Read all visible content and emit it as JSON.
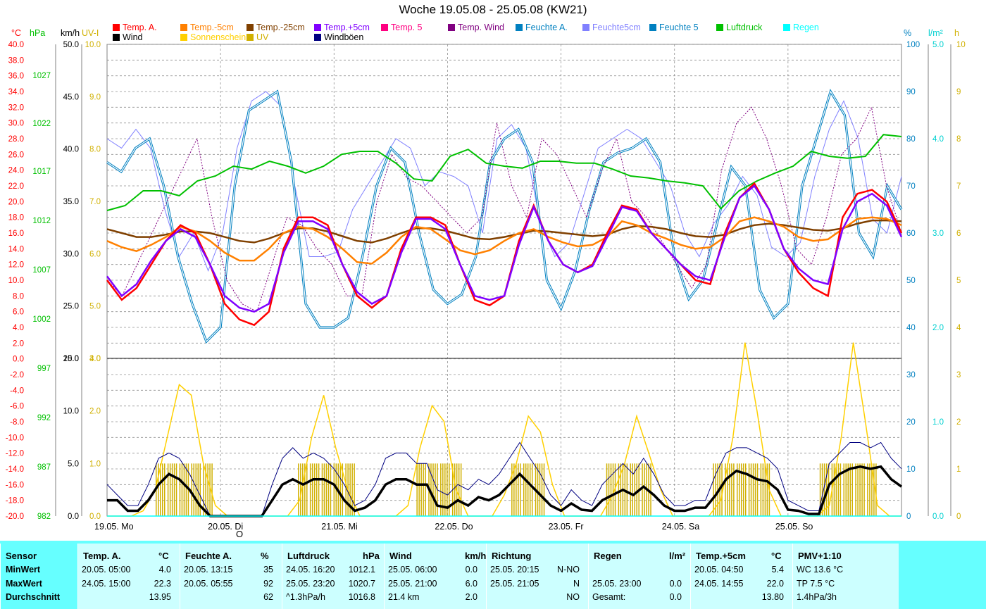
{
  "title": "Woche 19.05.08 - 25.05.08 (KW21)",
  "legend": {
    "row1": [
      {
        "label": "Temp. A.",
        "color": "#ff0000"
      },
      {
        "label": "Temp.-5cm",
        "color": "#ff8000"
      },
      {
        "label": "Temp.-25cm",
        "color": "#804000"
      },
      {
        "label": "Temp.+5cm",
        "color": "#8000ff"
      },
      {
        "label": "Temp. 5",
        "color": "#ff0080"
      },
      {
        "label": "Temp. Wind",
        "color": "#800080"
      },
      {
        "label": "Feuchte A.",
        "color": "#0080c0"
      },
      {
        "label": "Feuchte5cm",
        "color": "#8080ff"
      },
      {
        "label": "Feuchte 5",
        "color": "#0080c0"
      },
      {
        "label": "Luftdruck",
        "color": "#00c000"
      },
      {
        "label": "Regen",
        "color": "#00ffff"
      }
    ],
    "row2": [
      {
        "label": "Wind",
        "color": "#000000"
      },
      {
        "label": "Sonnenschein",
        "color": "#ffd000"
      },
      {
        "label": "UV",
        "color": "#d0b000"
      },
      {
        "label": "Windböen",
        "color": "#000080"
      }
    ]
  },
  "units": {
    "celsius": "°C",
    "hpa": "hPa",
    "kmh": "km/h",
    "uvi": "UV-I",
    "percent": "%",
    "lm2": "l/m²",
    "h": "h"
  },
  "axis_colors": {
    "celsius": "#ff0000",
    "hpa": "#00c000",
    "kmh": "#000000",
    "uvi": "#d0b000",
    "percent": "#0080c0",
    "lm2": "#00d0d0",
    "h": "#d0b000"
  },
  "marker": "O",
  "chart_data": {
    "type": "line",
    "x_labels": [
      "19.05. Mo",
      "20.05. Di",
      "21.05. Mi",
      "22.05. Do",
      "23.05. Fr",
      "24.05. Sa",
      "25.05. So"
    ],
    "axes": {
      "temp_c": {
        "range": [
          -20,
          40
        ],
        "ticks": [
          "40.0",
          "38.0",
          "36.0",
          "34.0",
          "32.0",
          "30.0",
          "28.0",
          "26.0",
          "24.0",
          "22.0",
          "20.0",
          "18.0",
          "16.0",
          "14.0",
          "12.0",
          "10.0",
          "8.0",
          "6.0",
          "4.0",
          "2.0",
          "0.0",
          "-2.0",
          "-4.0",
          "-6.0",
          "-8.0",
          "-10.0",
          "-12.0",
          "-14.0",
          "-16.0",
          "-18.0",
          "-20.0"
        ]
      },
      "pressure_hpa": {
        "ticks": [
          "1027",
          "1022",
          "1017",
          "1012",
          "1007",
          "1002",
          "997",
          "992",
          "987",
          "982"
        ]
      },
      "wind_upper_kmh": {
        "range": [
          20,
          50
        ],
        "ticks": [
          "50.0",
          "45.0",
          "40.0",
          "35.0",
          "30.0",
          "25.0",
          "20.0"
        ]
      },
      "wind_lower_kmh": {
        "range": [
          0,
          15
        ],
        "ticks": [
          "15.0",
          "10.0",
          "5.0",
          "0.0"
        ]
      },
      "uv_upper": {
        "range": [
          4,
          10
        ],
        "ticks": [
          "10.0",
          "9.0",
          "8.0",
          "7.0",
          "6.0",
          "5.0",
          "4.0"
        ]
      },
      "uv_lower": {
        "range": [
          0,
          3
        ],
        "ticks": [
          "3.0",
          "2.0",
          "1.0",
          "0.0"
        ]
      },
      "humidity_pct": {
        "range": [
          0,
          100
        ],
        "ticks": [
          "100",
          "90",
          "80",
          "70",
          "60",
          "50",
          "40",
          "30",
          "20",
          "10",
          "0"
        ]
      },
      "rain_lm2": {
        "range": [
          0,
          5
        ],
        "ticks": [
          "5.0",
          "4.0",
          "3.0",
          "2.0",
          "1.0",
          "0.0"
        ]
      },
      "sun_h": {
        "range": [
          0,
          10
        ],
        "ticks": [
          "10",
          "9",
          "8",
          "7",
          "6",
          "5",
          "4",
          "3",
          "2",
          "1",
          "0"
        ]
      }
    },
    "grid": true,
    "series": [
      {
        "name": "Temp. A.",
        "axis": "temp_c",
        "color": "#ff0000",
        "width": 2.5,
        "values": [
          10,
          7.5,
          9,
          12,
          15,
          17,
          16,
          12,
          7,
          5,
          4.3,
          6,
          14,
          18,
          18,
          17,
          12,
          8,
          6.5,
          8,
          14,
          18,
          18,
          17,
          12,
          7.5,
          6.8,
          8,
          15,
          19.5,
          15,
          12,
          11,
          12,
          16,
          19.5,
          19,
          16,
          14,
          12,
          10,
          9.5,
          16,
          20.5,
          22.3,
          19,
          14,
          11,
          9,
          8,
          18,
          21,
          21.5,
          20,
          16
        ]
      },
      {
        "name": "Temp.+5cm",
        "axis": "temp_c",
        "color": "#8000ff",
        "width": 2.5,
        "values": [
          10.5,
          8,
          9.5,
          12.5,
          15,
          16.5,
          15.5,
          12,
          8,
          6.5,
          6,
          7,
          13.5,
          17.5,
          17.5,
          16.5,
          12,
          8.5,
          7,
          8,
          13.5,
          17.8,
          17.8,
          16.5,
          12,
          8,
          7.5,
          8,
          14.5,
          19.3,
          15,
          12,
          11,
          11.8,
          15.5,
          19.3,
          18.8,
          16,
          14,
          12,
          10.5,
          10,
          15.5,
          20.5,
          22,
          19,
          14,
          11.5,
          10,
          9.5,
          16.5,
          20,
          21,
          19.5,
          15.5
        ]
      },
      {
        "name": "Temp.-5cm",
        "axis": "temp_c",
        "color": "#ff8000",
        "width": 2.5,
        "values": [
          15,
          14.2,
          13.7,
          14.5,
          15.5,
          16.8,
          16.2,
          15,
          13.5,
          12.5,
          12.5,
          14,
          16,
          16.8,
          16.5,
          15.5,
          14,
          12.3,
          12.1,
          13.5,
          15.5,
          16.8,
          16.5,
          15.2,
          13.8,
          13.3,
          13.8,
          15,
          16,
          16.5,
          15.5,
          14.8,
          14.3,
          14.5,
          15.5,
          17.5,
          17,
          16,
          15.3,
          14.5,
          14,
          14.2,
          15.5,
          17.5,
          18,
          17.5,
          16.8,
          15.5,
          15,
          15.2,
          16.5,
          17.8,
          18,
          17.8,
          17
        ]
      },
      {
        "name": "Temp.-25cm",
        "axis": "temp_c",
        "color": "#804000",
        "width": 2.5,
        "values": [
          16.5,
          16,
          15.5,
          15.5,
          15.8,
          16.2,
          16.2,
          16,
          15.5,
          15,
          14.8,
          15.3,
          16,
          16.6,
          16.6,
          16.2,
          15.6,
          15,
          14.8,
          15.3,
          16,
          16.6,
          16.6,
          16.3,
          15.8,
          15.3,
          15.2,
          15.5,
          15.9,
          16.3,
          16.2,
          16,
          15.8,
          15.6,
          15.8,
          16.5,
          16.9,
          16.8,
          16.5,
          16,
          15.6,
          15.5,
          15.8,
          16.5,
          17,
          17.2,
          17,
          16.7,
          16.4,
          16.3,
          16.6,
          17.2,
          17.6,
          17.6,
          17.5
        ]
      },
      {
        "name": "Temp. Wind",
        "axis": "temp_c",
        "color": "#800080",
        "width": 1,
        "dashed": true,
        "values": [
          10,
          8,
          12,
          16,
          20,
          24,
          28,
          18,
          10,
          7,
          6,
          12,
          18,
          17,
          14,
          12,
          8,
          8,
          20,
          26,
          23,
          22,
          20,
          18,
          16,
          18,
          30,
          22,
          18,
          28,
          26,
          22,
          18,
          24,
          28,
          20,
          18,
          15,
          12,
          9,
          12,
          24,
          30,
          32,
          28,
          22,
          14,
          12,
          18,
          26,
          28,
          32,
          22,
          16
        ]
      },
      {
        "name": "Feuchte A.",
        "axis": "humidity_pct",
        "color": "#0080c0",
        "width": 1,
        "double": true,
        "values": [
          75,
          73,
          78,
          80,
          70,
          55,
          45,
          37,
          40,
          70,
          86,
          88,
          90,
          75,
          45,
          40,
          40,
          42,
          55,
          70,
          78,
          75,
          60,
          48,
          45,
          47,
          55,
          75,
          80,
          82,
          75,
          50,
          44,
          52,
          65,
          75,
          77,
          78,
          80,
          75,
          55,
          46,
          50,
          62,
          74,
          70,
          48,
          42,
          45,
          70,
          80,
          90,
          85,
          60,
          55,
          70,
          65
        ]
      },
      {
        "name": "Feuchte5cm",
        "axis": "humidity_pct",
        "color": "#8080ff",
        "width": 1,
        "values": [
          80,
          78,
          82,
          78,
          65,
          55,
          60,
          52,
          60,
          78,
          88,
          90,
          87,
          70,
          55,
          55,
          56,
          65,
          70,
          75,
          80,
          78,
          70,
          73,
          72,
          70,
          60,
          80,
          83,
          78,
          62,
          55,
          58,
          68,
          78,
          80,
          82,
          80,
          75,
          70,
          60,
          55,
          62,
          66,
          72,
          68,
          57,
          55,
          58,
          72,
          82,
          88,
          80,
          63,
          60,
          72
        ]
      },
      {
        "name": "Luftdruck",
        "axis": "pressure_hpa",
        "color": "#00c000",
        "width": 2,
        "values": [
          1013,
          1013.5,
          1015,
          1015,
          1014.5,
          1016,
          1016.5,
          1017.5,
          1017.2,
          1018,
          1017.5,
          1016.8,
          1017.5,
          1018.7,
          1019,
          1019,
          1017.8,
          1016.2,
          1016,
          1018.5,
          1019.2,
          1017.8,
          1017.5,
          1017.3,
          1018,
          1018,
          1017.8,
          1017.8,
          1017.2,
          1016.5,
          1016.3,
          1016,
          1015.8,
          1015.5,
          1013.2,
          1015,
          1016,
          1016.8,
          1017.5,
          1019,
          1018.5,
          1018.3,
          1018.5,
          1020.7,
          1020.5
        ]
      },
      {
        "name": "Wind",
        "axis": "wind_lower_kmh",
        "color": "#000000",
        "width": 3.5,
        "values": [
          1.5,
          1.5,
          0.5,
          0.5,
          1.5,
          3,
          4,
          3.5,
          2.5,
          1,
          0,
          0,
          0,
          0,
          0,
          0,
          1.5,
          3,
          3.5,
          3,
          3.5,
          3.5,
          3,
          1.5,
          0.5,
          0.8,
          1.5,
          3,
          3.5,
          3.5,
          3,
          3,
          1,
          0.8,
          1.5,
          1,
          1.8,
          1.5,
          2,
          3,
          4,
          3,
          2,
          1,
          0.5,
          1.2,
          0.6,
          0.5,
          1.5,
          2,
          2.5,
          2,
          2.8,
          2,
          1,
          0.5,
          0.5,
          0.8,
          0.8,
          2,
          3.5,
          4.3,
          4,
          3.5,
          3.3,
          2.5,
          0.6,
          0.5,
          0.2,
          0.2,
          3,
          4,
          4.5,
          4.7,
          4.5,
          4.7,
          3.5,
          2.8
        ]
      },
      {
        "name": "Windböen",
        "axis": "wind_lower_kmh",
        "color": "#000080",
        "width": 1,
        "values": [
          3,
          2,
          1,
          1,
          3,
          5.5,
          6,
          5.5,
          4,
          2,
          0,
          0,
          0,
          0,
          0,
          0,
          3,
          5.5,
          6.5,
          5.5,
          6,
          5.5,
          4.5,
          3,
          1,
          1.5,
          3,
          5.5,
          6,
          6,
          5,
          5,
          2.5,
          2,
          3,
          2.5,
          3.5,
          3,
          4,
          5.5,
          7,
          5.5,
          4,
          2,
          1,
          2.5,
          1.5,
          1,
          3,
          4,
          5,
          4,
          5.5,
          4,
          2,
          1,
          1,
          1.5,
          1.5,
          4,
          6,
          6.5,
          6.5,
          6,
          5.5,
          4.5,
          1.5,
          1,
          0.5,
          0.5,
          5,
          6,
          7,
          7,
          6.5,
          7,
          5.5,
          4.5
        ]
      },
      {
        "name": "Sonnenschein",
        "axis": "uv_lower",
        "color": "#ffd000",
        "width": 1.5,
        "values": [
          0,
          0,
          0,
          0.1,
          0.5,
          1.5,
          2.5,
          2.3,
          1,
          0.2,
          0,
          0,
          0,
          0,
          0,
          0,
          0.3,
          1.5,
          2.3,
          1.3,
          0.5,
          0,
          0,
          0,
          0,
          0.2,
          1.3,
          2.1,
          1.8,
          0.5,
          0,
          0,
          0,
          0.4,
          1,
          1.9,
          1.6,
          0.6,
          0,
          0,
          0,
          0,
          0.4,
          1,
          1.9,
          1.2,
          0.5,
          0,
          0,
          0,
          0,
          0.3,
          1.5,
          3.3,
          2,
          0.5,
          0,
          0,
          0,
          0,
          0.2,
          1.5,
          3.3,
          1.8,
          0.2,
          0,
          0
        ]
      },
      {
        "name": "UV",
        "axis": "uv_lower",
        "color": "#d0b000",
        "width": 1,
        "bars": true,
        "values": [
          0,
          0,
          0,
          0,
          1,
          1,
          1,
          1,
          1,
          0,
          0,
          0,
          0,
          0,
          0,
          0,
          1,
          1,
          1,
          1,
          1,
          0,
          0,
          0,
          0,
          0,
          1,
          1,
          1,
          1,
          0,
          0,
          0,
          0,
          1,
          1,
          1,
          0,
          0,
          0,
          0,
          0,
          1,
          1,
          1,
          1,
          0,
          0,
          0,
          0,
          0,
          1,
          1,
          1,
          1,
          1,
          0,
          0,
          0,
          0,
          1,
          1,
          1,
          1,
          1,
          0,
          0
        ]
      },
      {
        "name": "Regen",
        "axis": "rain_lm2",
        "color": "#00ffff",
        "width": 1.5,
        "values": [
          0,
          0,
          0,
          0,
          0,
          0,
          0,
          0,
          0,
          0,
          0,
          0,
          0,
          0,
          0,
          0,
          0,
          0,
          0,
          0
        ]
      }
    ]
  },
  "stats": {
    "columns": [
      {
        "header": "Sensor",
        "unit": ""
      },
      {
        "header": "Temp. A.",
        "unit": "°C"
      },
      {
        "header": "Feuchte A.",
        "unit": "%"
      },
      {
        "header": "Luftdruck",
        "unit": "hPa"
      },
      {
        "header": "Wind",
        "unit": "km/h"
      },
      {
        "header": "Richtung",
        "unit": ""
      },
      {
        "header": "Regen",
        "unit": "l/m²"
      },
      {
        "header": "Temp.+5cm",
        "unit": "°C"
      },
      {
        "header": "PMV+1:10",
        "unit": ""
      }
    ],
    "rows": [
      {
        "label": "MinWert",
        "cells": [
          [
            "20.05.  05:00",
            "4.0"
          ],
          [
            "20.05.  13:15",
            "35"
          ],
          [
            "24.05.  16:20",
            "1012.1"
          ],
          [
            "25.05.  06:00",
            "0.0"
          ],
          [
            "25.05.  20:15",
            "N-NO"
          ],
          [
            "",
            ""
          ],
          [
            "20.05.  04:50",
            "5.4"
          ],
          [
            "WC 13.6 °C",
            ""
          ]
        ]
      },
      {
        "label": "MaxWert",
        "cells": [
          [
            "24.05.  15:00",
            "22.3"
          ],
          [
            "20.05.  05:55",
            "92"
          ],
          [
            "25.05.  23:20",
            "1020.7"
          ],
          [
            "25.05.  21:00",
            "6.0"
          ],
          [
            "25.05.  21:05",
            "N"
          ],
          [
            "25.05.  23:00",
            "0.0"
          ],
          [
            "24.05.  14:55",
            "22.0"
          ],
          [
            "TP 7.5 °C",
            ""
          ]
        ]
      },
      {
        "label": "Durchschnitt",
        "cells": [
          [
            "",
            "13.95"
          ],
          [
            "",
            "62"
          ],
          [
            "^1.3hPa/h",
            "1016.8"
          ],
          [
            "21.4 km",
            "2.0"
          ],
          [
            "",
            "NO"
          ],
          [
            "Gesamt:",
            "0.0"
          ],
          [
            "",
            "13.80"
          ],
          [
            "1.4hPa/3h",
            ""
          ]
        ]
      }
    ]
  }
}
